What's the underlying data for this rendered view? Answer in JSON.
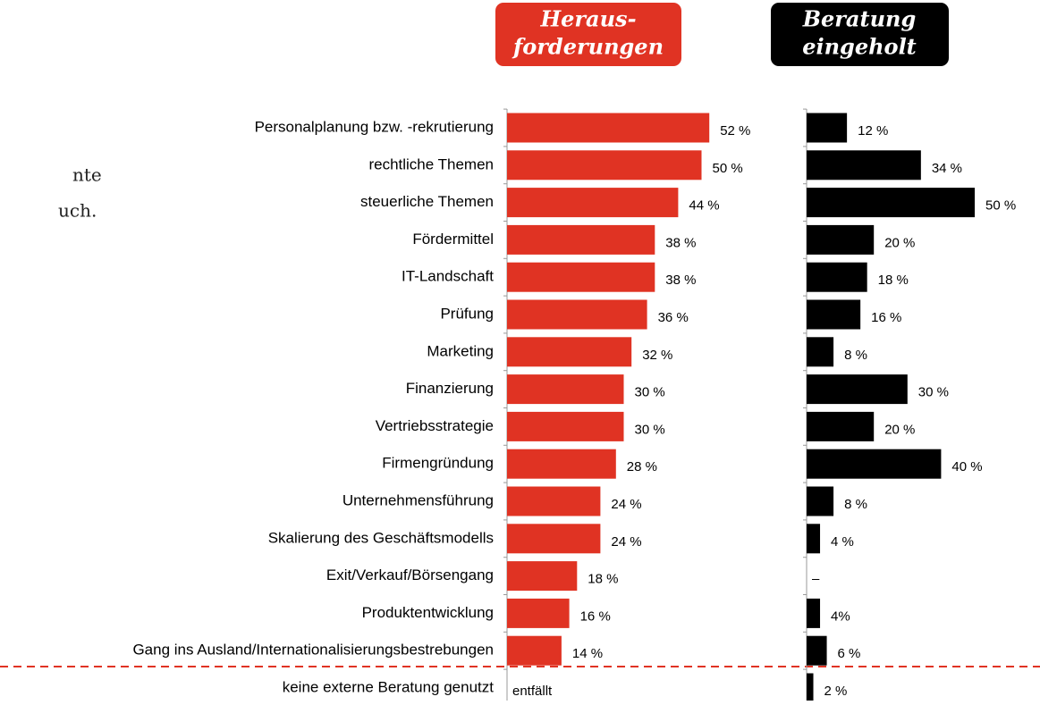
{
  "side_text": [
    "nte",
    "uch."
  ],
  "chart_data": [
    {
      "type": "bar",
      "orientation": "horizontal",
      "title": [
        "Heraus-",
        "forderungen"
      ],
      "categories": [
        "Personalplanung bzw. -rekrutierung",
        "rechtliche Themen",
        "steuerliche Themen",
        "Fördermittel",
        "IT-Landschaft",
        "Prüfung",
        "Marketing",
        "Finanzierung",
        "Vertriebsstrategie",
        "Firmengründung",
        "Unternehmensführung",
        "Skalierung des Geschäftsmodells",
        "Exit/Verkauf/Börsengang",
        "Produktentwicklung",
        "Gang ins Ausland/Internationalisierungsbestrebungen",
        "keine externe Beratung genutzt"
      ],
      "values": [
        52,
        50,
        44,
        38,
        38,
        36,
        32,
        30,
        30,
        28,
        24,
        24,
        18,
        16,
        14,
        null
      ],
      "value_labels": [
        "52 %",
        "50 %",
        "44 %",
        "38 %",
        "38 %",
        "36 %",
        "32 %",
        "30 %",
        "30 %",
        "28 %",
        "24 %",
        "24 %",
        "18 %",
        "16 %",
        "14 %",
        "entfällt"
      ],
      "color": "#e03323",
      "xlim": [
        0,
        60
      ]
    },
    {
      "type": "bar",
      "orientation": "horizontal",
      "title": [
        "Beratung",
        "eingeholt"
      ],
      "values": [
        12,
        34,
        50,
        20,
        18,
        16,
        8,
        30,
        20,
        40,
        8,
        4,
        null,
        4,
        6,
        2
      ],
      "value_labels": [
        "12 %",
        "34 %",
        "50 %",
        "20 %",
        "18 %",
        "16 %",
        "8 %",
        "30 %",
        "20 %",
        "40 %",
        "8 %",
        "4 %",
        "–",
        "4%",
        "6 %",
        "2 %"
      ],
      "color": "#000000",
      "xlim": [
        0,
        50
      ]
    }
  ]
}
